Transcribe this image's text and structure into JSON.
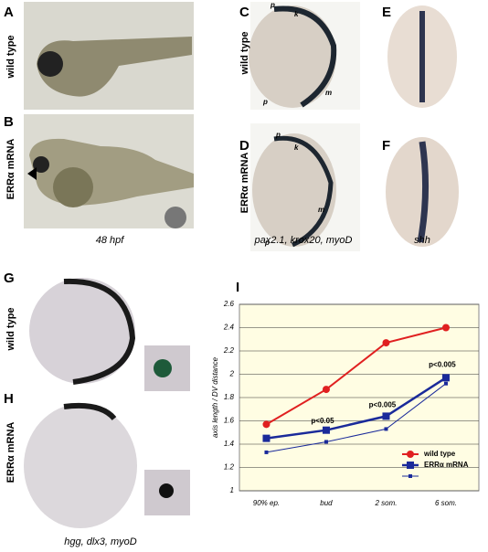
{
  "panel_letters": [
    "A",
    "B",
    "C",
    "D",
    "E",
    "F",
    "G",
    "H",
    "I"
  ],
  "row_labels": [
    "wild type",
    "ERRα mRNA",
    "wild type",
    "ERRα mRNA",
    "wild type",
    "ERRα mRNA"
  ],
  "captions": [
    "48 hpf",
    "pax2.1, krox20, myoD",
    "shh",
    "hgg, dlx3, myoD"
  ],
  "markers": [
    "p",
    "k",
    "m",
    "p",
    "p",
    "k",
    "m",
    "p"
  ],
  "chart_data": {
    "type": "line",
    "y_label": "axis length / DV distance",
    "categories": [
      "90% ep.",
      "bud",
      "2 som.",
      "6 som."
    ],
    "series": [
      {
        "name": "wild type",
        "color": "#e02020",
        "values": [
          1.57,
          1.87,
          2.27,
          2.4
        ]
      },
      {
        "name": "ERRα mRNA",
        "color": "#1a2a9a",
        "values": [
          1.45,
          1.52,
          1.64,
          1.97
        ]
      },
      {
        "color": "#1a2a9a",
        "values": [
          1.33,
          1.42,
          1.53,
          1.92
        ]
      }
    ],
    "annotations": [
      "p<0.05",
      "p<0.005",
      "p<0.005"
    ],
    "ylim": [
      1,
      2.6
    ],
    "yticks": [
      1,
      1.2,
      1.4,
      1.6,
      1.8,
      2,
      2.2,
      2.4,
      2.6
    ],
    "grid": true
  }
}
